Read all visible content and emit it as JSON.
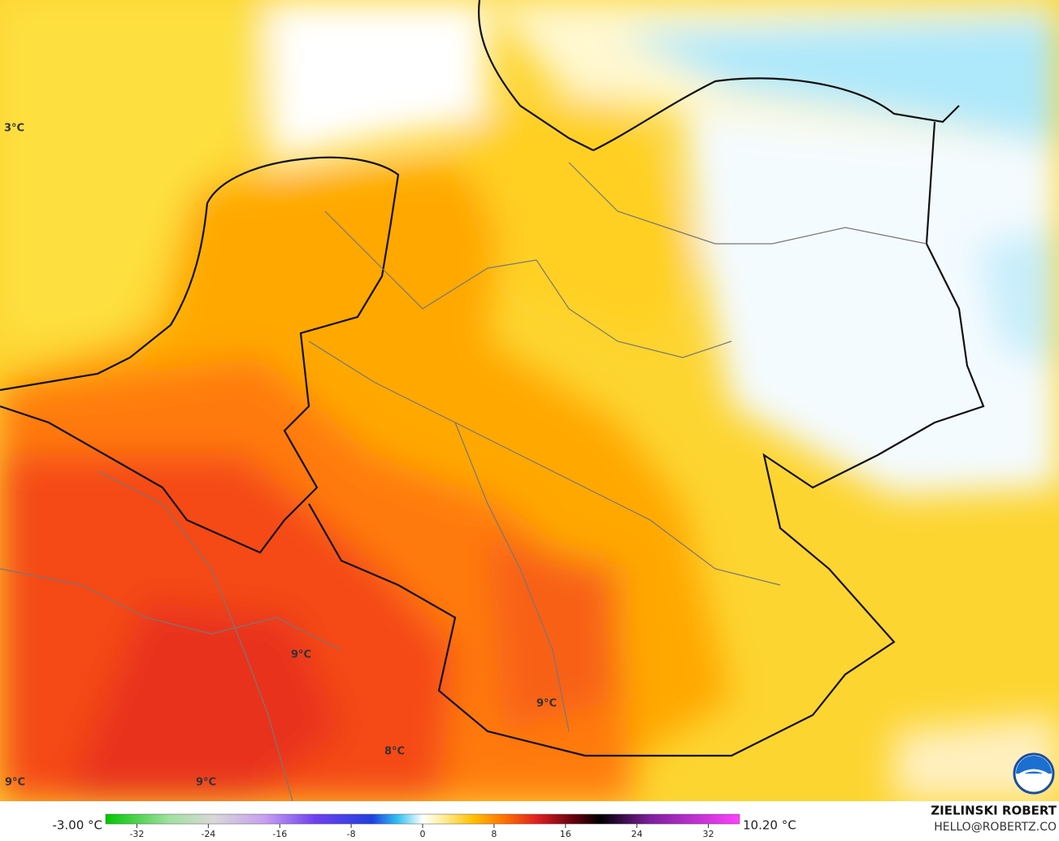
{
  "map": {
    "labels": [
      "3°C",
      "9°C",
      "9°C",
      "8°C",
      "9°C",
      "9°C"
    ],
    "legend": {
      "min_label": "-3.00 °C",
      "max_label": "10.20 °C",
      "xlim": [
        -35.5,
        35.5
      ],
      "xticks": [
        -32,
        -24,
        -16,
        -8,
        0,
        8,
        16,
        24,
        32
      ]
    },
    "credit": {
      "name": "ZIELINSKI ROBERT",
      "email": "HELLO@ROBERTZ.CO"
    }
  }
}
